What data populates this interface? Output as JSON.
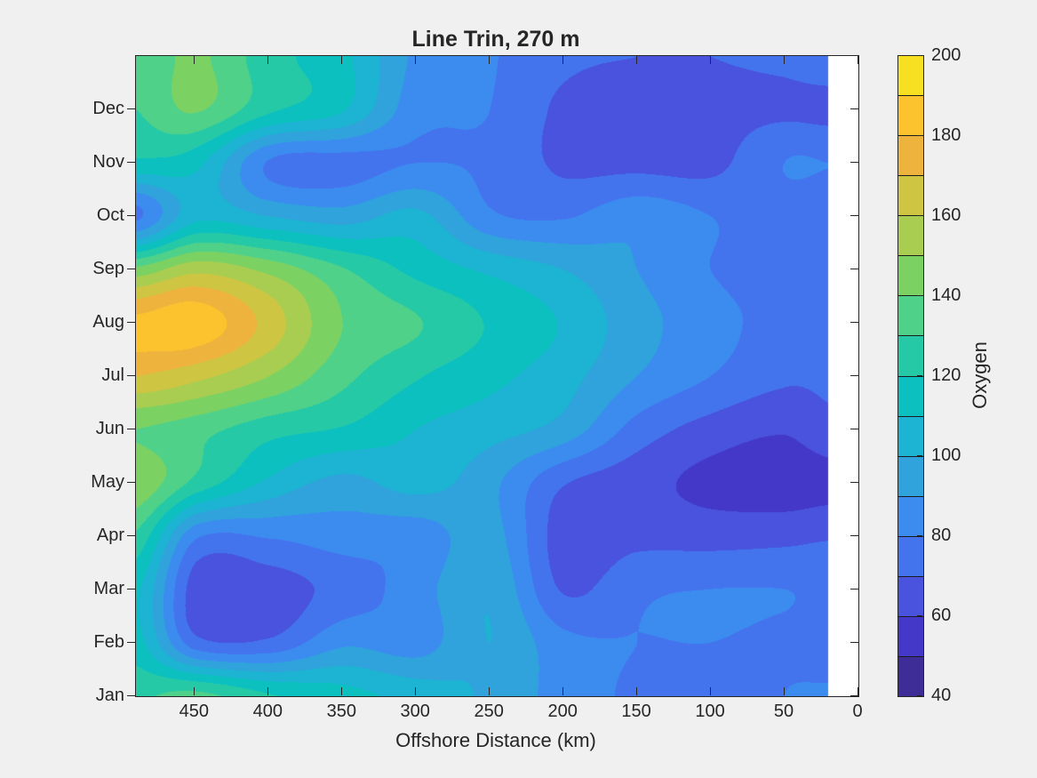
{
  "figure": {
    "background_color": "#f0f0f0",
    "frame_color": "#262626",
    "text_color": "#262626",
    "no_data_color": "#ffffff"
  },
  "chart_data": {
    "type": "heatmap",
    "subtype": "filled-contour",
    "title": "Line Trin, 270 m",
    "xlabel": "Offshore Distance (km)",
    "ylabel": "",
    "x_axis_reversed": true,
    "x_range_km": [
      490,
      0
    ],
    "x_ticks": [
      450,
      400,
      350,
      300,
      250,
      200,
      150,
      100,
      50,
      0
    ],
    "y_tick_labels": [
      "Jan",
      "Feb",
      "Mar",
      "Apr",
      "May",
      "Jun",
      "Jul",
      "Aug",
      "Sep",
      "Oct",
      "Nov",
      "Dec"
    ],
    "no_data_band_km": [
      20.5,
      0
    ],
    "grid_lines": false,
    "colorbar": {
      "label": "Oxygen",
      "min": 40,
      "max": 200,
      "level_step": 10,
      "tick_values": [
        40,
        60,
        80,
        100,
        120,
        140,
        160,
        180,
        200
      ],
      "colors": [
        "#3e2d96",
        "#4438c8",
        "#4953dd",
        "#4374ee",
        "#3c8cf0",
        "#30a2dc",
        "#1db3d2",
        "#0cc0c0",
        "#26c9a6",
        "#4fd189",
        "#7cd163",
        "#a9cd50",
        "#cec643",
        "#eeb33c",
        "#fcc32e",
        "#f7df22"
      ]
    },
    "grid": {
      "x_km": [
        490,
        450,
        400,
        350,
        300,
        250,
        200,
        150,
        100,
        50,
        20
      ],
      "y_rows": [
        "Jan",
        "Feb",
        "Mar",
        "Apr",
        "May",
        "Jun",
        "Jul",
        "Aug",
        "Sep",
        "Oct",
        "Nov",
        "Dec",
        "TopOfAxis"
      ],
      "values": [
        [
          128,
          133,
          121,
          114,
          106,
          98,
          86,
          78,
          74,
          80,
          81
        ],
        [
          114,
          74,
          72,
          88,
          85,
          100,
          83,
          80,
          80,
          78,
          76
        ],
        [
          112,
          65,
          65,
          74,
          85,
          99,
          69,
          78,
          80,
          80,
          78
        ],
        [
          128,
          82,
          81,
          85,
          84,
          94,
          65,
          67,
          66,
          67,
          69
        ],
        [
          148,
          127,
          108,
          97,
          104,
          93,
          71,
          64,
          57,
          54,
          56
        ],
        [
          140,
          134,
          124,
          119,
          110,
          104,
          96,
          76,
          66,
          61,
          67
        ],
        [
          170,
          163,
          150,
          133,
          121,
          113,
          104,
          90,
          80,
          72,
          72
        ],
        [
          183,
          187,
          166,
          140,
          131,
          119,
          109,
          94,
          84,
          76,
          75
        ],
        [
          143,
          157,
          147,
          131,
          117,
          108,
          100,
          90,
          80,
          75,
          75
        ],
        [
          78,
          107,
          100,
          95,
          103,
          82,
          79,
          87,
          80,
          75,
          72
        ],
        [
          118,
          113,
          79,
          76,
          80,
          78,
          68,
          67,
          67,
          80,
          80
        ],
        [
          130,
          141,
          122,
          111,
          84,
          80,
          68,
          66,
          67,
          68,
          67
        ],
        [
          131,
          142,
          124,
          113,
          88,
          81,
          72,
          70,
          70,
          72,
          76
        ]
      ]
    }
  }
}
